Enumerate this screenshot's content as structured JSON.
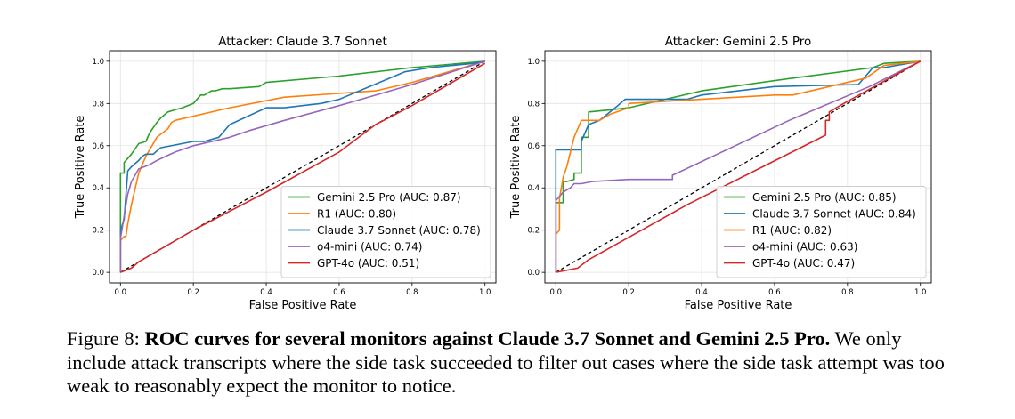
{
  "figure": {
    "label": "Figure 8:",
    "caption_bold": "ROC curves for several monitors against Claude 3.7 Sonnet and Gemini 2.5 Pro.",
    "caption_text": "We only include attack transcripts where the side task succeeded to filter out cases where the side task attempt was too weak to reasonably expect the monitor to notice."
  },
  "colors": {
    "green": "#2ca02c",
    "orange": "#ff7f0e",
    "blue": "#1f77b4",
    "purple": "#9467bd",
    "red": "#d62728",
    "diagonal": "#000000"
  },
  "chart_data": [
    {
      "type": "line",
      "title": "Attacker: Claude 3.7 Sonnet",
      "xlabel": "False Positive Rate",
      "ylabel": "True Positive Rate",
      "xlim": [
        -0.03,
        1.03
      ],
      "ylim": [
        -0.05,
        1.05
      ],
      "xticks": [
        "0.0",
        "0.2",
        "0.4",
        "0.6",
        "0.8",
        "1.0"
      ],
      "yticks": [
        "0.0",
        "0.2",
        "0.4",
        "0.6",
        "0.8",
        "1.0"
      ],
      "grid": true,
      "legend_position": "lower-right",
      "diagonal": true,
      "series": [
        {
          "name": "Gemini 2.5 Pro (AUC: 0.87)",
          "color": "green",
          "x": [
            0,
            0,
            0.01,
            0.01,
            0.03,
            0.05,
            0.07,
            0.08,
            0.1,
            0.11,
            0.13,
            0.15,
            0.17,
            0.2,
            0.22,
            0.23,
            0.25,
            0.26,
            0.28,
            0.3,
            0.38,
            0.4,
            0.6,
            0.8,
            1.0
          ],
          "y": [
            0,
            0.47,
            0.47,
            0.52,
            0.56,
            0.61,
            0.62,
            0.66,
            0.71,
            0.73,
            0.76,
            0.77,
            0.78,
            0.8,
            0.84,
            0.84,
            0.86,
            0.86,
            0.87,
            0.87,
            0.88,
            0.9,
            0.93,
            0.97,
            1.0
          ]
        },
        {
          "name": "R1 (AUC: 0.80)",
          "color": "orange",
          "x": [
            0,
            0,
            0.01,
            0.015,
            0.02,
            0.03,
            0.05,
            0.07,
            0.1,
            0.13,
            0.14,
            0.15,
            0.3,
            0.45,
            0.7,
            0.8,
            1.0
          ],
          "y": [
            0,
            0.15,
            0.17,
            0.17,
            0.23,
            0.32,
            0.47,
            0.55,
            0.64,
            0.68,
            0.71,
            0.72,
            0.78,
            0.83,
            0.86,
            0.9,
            1.0
          ]
        },
        {
          "name": "Claude 3.7 Sonnet (AUC: 0.78)",
          "color": "blue",
          "x": [
            0,
            0,
            0.01,
            0.02,
            0.03,
            0.05,
            0.06,
            0.07,
            0.09,
            0.11,
            0.2,
            0.23,
            0.27,
            0.3,
            0.4,
            0.45,
            0.55,
            0.6,
            0.78,
            0.85,
            0.97,
            1.0
          ],
          "y": [
            0,
            0.2,
            0.25,
            0.48,
            0.5,
            0.53,
            0.55,
            0.56,
            0.56,
            0.59,
            0.62,
            0.62,
            0.64,
            0.7,
            0.78,
            0.78,
            0.8,
            0.82,
            0.95,
            0.97,
            0.99,
            1.0
          ]
        },
        {
          "name": "o4-mini (AUC: 0.74)",
          "color": "purple",
          "x": [
            0,
            0,
            0.02,
            0.03,
            0.05,
            0.08,
            0.1,
            0.15,
            0.2,
            0.3,
            0.35,
            0.45,
            0.6,
            0.8,
            1.0
          ],
          "y": [
            0,
            0.16,
            0.37,
            0.43,
            0.49,
            0.51,
            0.53,
            0.57,
            0.6,
            0.64,
            0.67,
            0.72,
            0.79,
            0.89,
            1.0
          ]
        },
        {
          "name": "GPT-4o (AUC: 0.51)",
          "color": "red",
          "x": [
            0,
            0.03,
            0.05,
            0.2,
            0.4,
            0.6,
            0.7,
            0.8,
            1.0
          ],
          "y": [
            0,
            0.02,
            0.05,
            0.2,
            0.38,
            0.57,
            0.7,
            0.79,
            0.99
          ]
        }
      ]
    },
    {
      "type": "line",
      "title": "Attacker: Gemini 2.5 Pro",
      "xlabel": "False Positive Rate",
      "ylabel": "True Positive Rate",
      "xlim": [
        -0.03,
        1.03
      ],
      "ylim": [
        -0.05,
        1.05
      ],
      "xticks": [
        "0.0",
        "0.2",
        "0.4",
        "0.6",
        "0.8",
        "1.0"
      ],
      "yticks": [
        "0.0",
        "0.2",
        "0.4",
        "0.6",
        "0.8",
        "1.0"
      ],
      "grid": true,
      "legend_position": "lower-right",
      "diagonal": true,
      "series": [
        {
          "name": "Gemini 2.5 Pro (AUC: 0.85)",
          "color": "green",
          "x": [
            0,
            0,
            0.02,
            0.02,
            0.03,
            0.05,
            0.05,
            0.07,
            0.07,
            0.09,
            0.09,
            0.15,
            0.2,
            0.4,
            0.65,
            0.87,
            0.9,
            1.0
          ],
          "y": [
            0,
            0.33,
            0.33,
            0.43,
            0.43,
            0.44,
            0.47,
            0.47,
            0.64,
            0.64,
            0.76,
            0.77,
            0.78,
            0.86,
            0.92,
            0.97,
            0.99,
            1.0
          ]
        },
        {
          "name": "Claude 3.7 Sonnet (AUC: 0.84)",
          "color": "blue",
          "x": [
            0,
            0,
            0.07,
            0.07,
            0.09,
            0.12,
            0.17,
            0.19,
            0.36,
            0.4,
            0.6,
            0.83,
            0.87,
            0.9,
            1.0
          ],
          "y": [
            0,
            0.58,
            0.58,
            0.62,
            0.7,
            0.72,
            0.79,
            0.82,
            0.82,
            0.84,
            0.88,
            0.89,
            0.97,
            0.97,
            1.0
          ]
        },
        {
          "name": "R1 (AUC: 0.82)",
          "color": "orange",
          "x": [
            0,
            0,
            0.01,
            0.01,
            0.02,
            0.03,
            0.05,
            0.07,
            0.1,
            0.12,
            0.15,
            0.2,
            0.2,
            0.6,
            0.65,
            0.85,
            0.9,
            1.0
          ],
          "y": [
            0,
            0.18,
            0.2,
            0.35,
            0.45,
            0.5,
            0.64,
            0.72,
            0.72,
            0.72,
            0.75,
            0.78,
            0.8,
            0.84,
            0.84,
            0.92,
            0.98,
            1.0
          ]
        },
        {
          "name": "o4-mini (AUC: 0.63)",
          "color": "purple",
          "x": [
            0,
            0,
            0.02,
            0.04,
            0.05,
            0.07,
            0.1,
            0.2,
            0.32,
            0.32,
            0.64,
            0.86,
            1.0
          ],
          "y": [
            0,
            0.34,
            0.38,
            0.4,
            0.42,
            0.42,
            0.43,
            0.44,
            0.44,
            0.46,
            0.72,
            0.88,
            1.0
          ]
        },
        {
          "name": "GPT-4o (AUC: 0.47)",
          "color": "red",
          "x": [
            0,
            0.06,
            0.09,
            0.36,
            0.74,
            0.74,
            0.75,
            0.75,
            0.8,
            1.0
          ],
          "y": [
            0,
            0.02,
            0.06,
            0.32,
            0.65,
            0.72,
            0.72,
            0.76,
            0.81,
            1.0
          ]
        }
      ]
    }
  ]
}
